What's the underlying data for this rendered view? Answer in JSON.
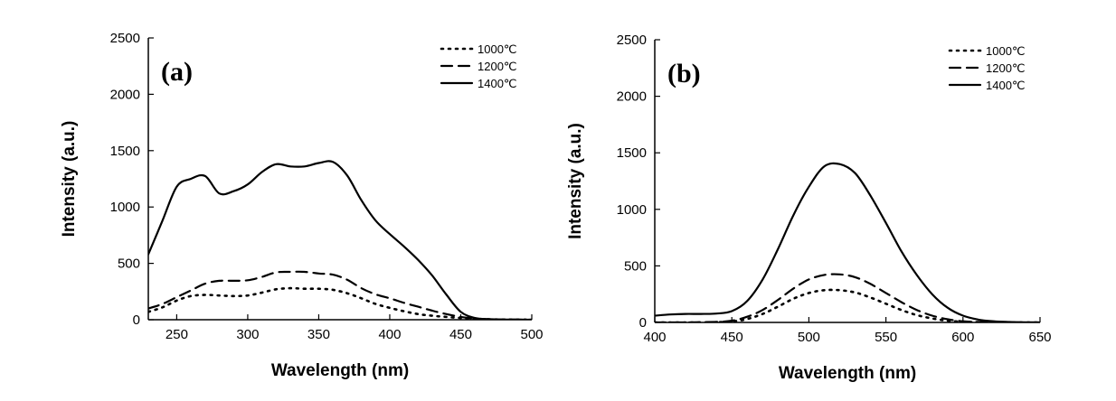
{
  "chart_data": [
    {
      "type": "line",
      "panel_label": "(a)",
      "xlabel": "Wavelength (nm)",
      "ylabel": "Intensity (a.u.)",
      "xlim": [
        230,
        500
      ],
      "ylim": [
        0,
        2500
      ],
      "xticks": [
        250,
        300,
        350,
        400,
        450,
        500
      ],
      "yticks": [
        0,
        500,
        1000,
        1500,
        2000,
        2500
      ],
      "legend_position": "top-right",
      "series": [
        {
          "name": "1000℃",
          "line_style": "dotted",
          "x": [
            230,
            240,
            250,
            260,
            270,
            280,
            290,
            300,
            310,
            320,
            330,
            340,
            350,
            360,
            370,
            380,
            390,
            400,
            410,
            420,
            430,
            440,
            450,
            460,
            470,
            480,
            490,
            500
          ],
          "y": [
            70,
            110,
            170,
            210,
            220,
            215,
            210,
            215,
            240,
            270,
            280,
            275,
            275,
            265,
            235,
            190,
            140,
            105,
            75,
            50,
            35,
            25,
            15,
            8,
            4,
            2,
            1,
            0
          ]
        },
        {
          "name": "1200℃",
          "line_style": "dashed",
          "x": [
            230,
            240,
            250,
            260,
            270,
            280,
            290,
            300,
            310,
            320,
            330,
            340,
            350,
            360,
            370,
            380,
            390,
            400,
            410,
            420,
            430,
            440,
            450,
            460,
            470,
            480,
            490,
            500
          ],
          "y": [
            100,
            140,
            200,
            260,
            320,
            345,
            345,
            350,
            380,
            420,
            425,
            425,
            410,
            400,
            355,
            280,
            225,
            190,
            150,
            115,
            80,
            50,
            25,
            10,
            4,
            2,
            1,
            0
          ]
        },
        {
          "name": "1400℃",
          "line_style": "solid",
          "x": [
            230,
            240,
            250,
            260,
            270,
            280,
            290,
            300,
            310,
            320,
            330,
            340,
            350,
            360,
            370,
            380,
            390,
            400,
            410,
            420,
            430,
            440,
            450,
            460,
            470,
            480,
            490,
            500
          ],
          "y": [
            580,
            880,
            1180,
            1250,
            1275,
            1120,
            1140,
            1200,
            1310,
            1380,
            1360,
            1360,
            1390,
            1400,
            1280,
            1060,
            880,
            760,
            650,
            530,
            390,
            220,
            70,
            15,
            5,
            2,
            1,
            0
          ]
        }
      ]
    },
    {
      "type": "line",
      "panel_label": "(b)",
      "xlabel": "Wavelength (nm)",
      "ylabel": "Intensity (a.u.)",
      "xlim": [
        400,
        650
      ],
      "ylim": [
        0,
        2500
      ],
      "xticks": [
        400,
        450,
        500,
        550,
        600,
        650
      ],
      "yticks": [
        0,
        500,
        1000,
        1500,
        2000,
        2500
      ],
      "legend_position": "top-right",
      "series": [
        {
          "name": "1000℃",
          "line_style": "dotted",
          "x": [
            400,
            410,
            420,
            430,
            440,
            450,
            460,
            470,
            480,
            490,
            500,
            510,
            520,
            530,
            540,
            550,
            560,
            570,
            580,
            590,
            600,
            610,
            620,
            630,
            640,
            650
          ],
          "y": [
            0,
            0,
            0,
            0,
            2,
            8,
            30,
            75,
            140,
            210,
            260,
            285,
            285,
            265,
            220,
            165,
            110,
            65,
            35,
            15,
            6,
            2,
            1,
            0,
            0,
            0
          ]
        },
        {
          "name": "1200℃",
          "line_style": "dashed",
          "x": [
            400,
            410,
            420,
            430,
            440,
            450,
            460,
            470,
            480,
            490,
            500,
            510,
            520,
            530,
            540,
            550,
            560,
            570,
            580,
            590,
            600,
            610,
            620,
            630,
            640,
            650
          ],
          "y": [
            0,
            0,
            0,
            2,
            5,
            15,
            50,
            110,
            200,
            300,
            380,
            420,
            425,
            400,
            340,
            260,
            180,
            110,
            60,
            28,
            10,
            4,
            1,
            0,
            0,
            0
          ]
        },
        {
          "name": "1400℃",
          "line_style": "solid",
          "x": [
            400,
            410,
            420,
            430,
            440,
            450,
            460,
            470,
            480,
            490,
            500,
            510,
            520,
            530,
            540,
            550,
            560,
            570,
            580,
            590,
            600,
            610,
            620,
            630,
            640,
            650
          ],
          "y": [
            60,
            70,
            75,
            75,
            78,
            100,
            190,
            380,
            650,
            950,
            1200,
            1380,
            1400,
            1320,
            1120,
            880,
            630,
            420,
            250,
            130,
            60,
            25,
            10,
            4,
            1,
            0
          ]
        }
      ]
    }
  ]
}
